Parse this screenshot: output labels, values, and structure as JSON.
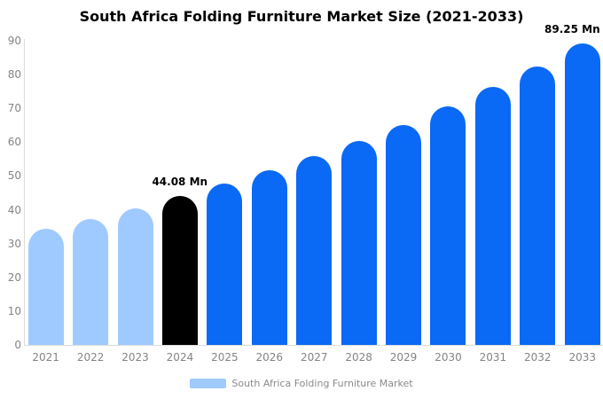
{
  "title": "South Africa Folding Furniture Market Size (2021-2033)",
  "colors": {
    "bar_light_blue": "#9fcaff",
    "bar_blue": "#0a69f5",
    "bar_black": "#000000",
    "axis_line": "#dcdcdc",
    "tick_text": "#848484",
    "legend_text": "#8a8a8a",
    "title_text": "#000000"
  },
  "chart_data": {
    "type": "bar",
    "title": "South Africa Folding Furniture Market Size (2021-2033)",
    "categories": [
      "2021",
      "2022",
      "2023",
      "2024",
      "2025",
      "2026",
      "2027",
      "2028",
      "2029",
      "2030",
      "2031",
      "2032",
      "2033"
    ],
    "values": [
      34.3,
      37.3,
      40.4,
      44.08,
      47.7,
      51.6,
      55.8,
      60.3,
      65.2,
      70.5,
      76.3,
      82.5,
      89.25
    ],
    "unit": "Mn",
    "point_colors": [
      "#9fcaff",
      "#9fcaff",
      "#9fcaff",
      "#000000",
      "#0a69f5",
      "#0a69f5",
      "#0a69f5",
      "#0a69f5",
      "#0a69f5",
      "#0a69f5",
      "#0a69f5",
      "#0a69f5",
      "#0a69f5"
    ],
    "annotations": [
      {
        "category": "2024",
        "text": "44.08 Mn"
      },
      {
        "category": "2033",
        "text": "89.25 Mn"
      }
    ],
    "xlabel": "",
    "ylabel": "",
    "ylim": [
      0,
      90
    ],
    "yticks": [
      0,
      10,
      20,
      30,
      40,
      50,
      60,
      70,
      80,
      90
    ],
    "grid": false,
    "legend_position": "bottom-center"
  },
  "legend": {
    "items": [
      {
        "label": "South Africa Folding Furniture Market",
        "color": "#9fcaff"
      }
    ]
  }
}
